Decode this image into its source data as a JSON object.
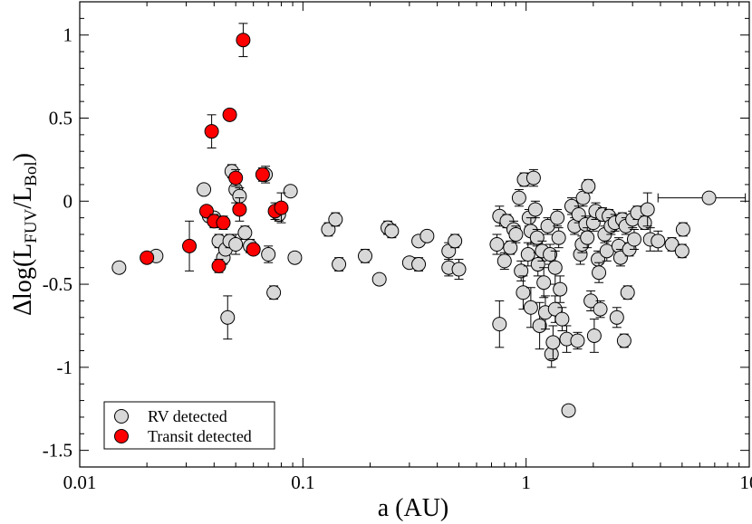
{
  "chart_data": {
    "type": "scatter",
    "xscale": "log",
    "xlim": [
      0.01,
      10
    ],
    "ylim": [
      -1.6,
      1.2
    ],
    "xlabel": "a (AU)",
    "ylabel": {
      "prefix": "Δlog(L",
      "sub1": "FUV",
      "mid": "/L",
      "sub2": "Bol",
      "suffix": ")"
    },
    "x_ticks": [
      {
        "value": 0.01,
        "label": "0.01"
      },
      {
        "value": 0.1,
        "label": "0.1"
      },
      {
        "value": 1,
        "label": "1"
      },
      {
        "value": 10,
        "label": "10"
      }
    ],
    "y_ticks": [
      {
        "value": 1,
        "label": "1"
      },
      {
        "value": 0.5,
        "label": "0.5"
      },
      {
        "value": 0,
        "label": "0"
      },
      {
        "value": -0.5,
        "label": "-0.5"
      },
      {
        "value": -1,
        "label": "-1"
      },
      {
        "value": -1.5,
        "label": "-1.5"
      }
    ],
    "legend": {
      "position": "bottom-left",
      "entries": [
        "RV detected",
        "Transit detected"
      ]
    },
    "series": [
      {
        "name": "RV detected",
        "color": "#d8d8d8",
        "points": [
          [
            0.015,
            -0.4,
            0.02
          ],
          [
            0.022,
            -0.33,
            0.03
          ],
          [
            0.036,
            0.07,
            0.02
          ],
          [
            0.038,
            -0.09,
            0.03
          ],
          [
            0.04,
            -0.1,
            0.03
          ],
          [
            0.042,
            -0.24,
            0.04
          ],
          [
            0.044,
            -0.34,
            0.04
          ],
          [
            0.045,
            -0.29,
            0.03
          ],
          [
            0.046,
            -0.7,
            0.13
          ],
          [
            0.047,
            -0.24,
            0.04
          ],
          [
            0.048,
            0.18,
            0.04
          ],
          [
            0.05,
            0.07,
            0.08
          ],
          [
            0.05,
            -0.26,
            0.06
          ],
          [
            0.052,
            0.03,
            0.05
          ],
          [
            0.055,
            -0.19,
            0.04
          ],
          [
            0.058,
            -0.27,
            0.04
          ],
          [
            0.068,
            0.16,
            0.05
          ],
          [
            0.07,
            -0.32,
            0.05
          ],
          [
            0.074,
            -0.55,
            0.04
          ],
          [
            0.078,
            -0.08,
            0.04
          ],
          [
            0.088,
            0.06,
            0.03
          ],
          [
            0.092,
            -0.34,
            0.03
          ],
          [
            0.13,
            -0.17,
            0.04
          ],
          [
            0.14,
            -0.11,
            0.04
          ],
          [
            0.145,
            -0.38,
            0.04
          ],
          [
            0.19,
            -0.33,
            0.04
          ],
          [
            0.22,
            -0.47,
            0.03
          ],
          [
            0.24,
            -0.16,
            0.04
          ],
          [
            0.25,
            -0.18,
            0.04
          ],
          [
            0.3,
            -0.37,
            0.03
          ],
          [
            0.33,
            -0.38,
            0.04
          ],
          [
            0.33,
            -0.24,
            0.03
          ],
          [
            0.36,
            -0.21,
            0.03
          ],
          [
            0.45,
            -0.4,
            0.05
          ],
          [
            0.45,
            -0.3,
            0.05
          ],
          [
            0.48,
            -0.24,
            0.04
          ],
          [
            0.5,
            -0.41,
            0.06
          ],
          [
            0.74,
            -0.26,
            0.06
          ],
          [
            0.76,
            -0.74,
            0.14
          ],
          [
            0.76,
            -0.09,
            0.06
          ],
          [
            0.8,
            -0.36,
            0.05
          ],
          [
            0.82,
            -0.12,
            0.04
          ],
          [
            0.85,
            -0.28,
            0.04
          ],
          [
            0.88,
            -0.17,
            0.05
          ],
          [
            0.9,
            -0.2,
            0.05
          ],
          [
            0.93,
            0.02,
            0.05
          ],
          [
            0.95,
            -0.42,
            0.06
          ],
          [
            0.97,
            -0.55,
            0.1
          ],
          [
            0.98,
            0.13,
            0.04
          ],
          [
            1.02,
            -0.32,
            0.07
          ],
          [
            1.03,
            -0.1,
            0.05
          ],
          [
            1.05,
            -0.18,
            0.08
          ],
          [
            1.05,
            -0.64,
            0.12
          ],
          [
            1.08,
            0.14,
            0.05
          ],
          [
            1.1,
            -0.05,
            0.05
          ],
          [
            1.12,
            -0.22,
            0.05
          ],
          [
            1.13,
            -0.38,
            0.07
          ],
          [
            1.15,
            -0.75,
            0.14
          ],
          [
            1.18,
            -0.3,
            0.06
          ],
          [
            1.2,
            -0.49,
            0.09
          ],
          [
            1.22,
            -0.67,
            0.1
          ],
          [
            1.25,
            -0.15,
            0.05
          ],
          [
            1.28,
            -0.32,
            0.06
          ],
          [
            1.3,
            -0.92,
            0.08
          ],
          [
            1.32,
            -0.85,
            0.1
          ],
          [
            1.35,
            -0.4,
            0.1
          ],
          [
            1.35,
            -0.65,
            0.08
          ],
          [
            1.38,
            -0.1,
            0.05
          ],
          [
            1.4,
            -0.22,
            0.06
          ],
          [
            1.42,
            -0.53,
            0.08
          ],
          [
            1.45,
            -0.71,
            0.07
          ],
          [
            1.52,
            -0.83,
            0.08
          ],
          [
            1.55,
            -1.26,
            0.03
          ],
          [
            1.6,
            -0.03,
            0.05
          ],
          [
            1.65,
            -0.15,
            0.05
          ],
          [
            1.7,
            -0.84,
            0.05
          ],
          [
            1.72,
            -0.08,
            0.05
          ],
          [
            1.75,
            -0.32,
            0.06
          ],
          [
            1.78,
            -0.26,
            0.05
          ],
          [
            1.8,
            0.02,
            0.05
          ],
          [
            1.85,
            -0.14,
            0.05
          ],
          [
            1.88,
            -0.22,
            0.06
          ],
          [
            1.9,
            0.09,
            0.04
          ],
          [
            1.95,
            -0.6,
            0.06
          ],
          [
            2.0,
            -0.13,
            0.05
          ],
          [
            2.02,
            -0.81,
            0.1
          ],
          [
            2.05,
            -0.06,
            0.05
          ],
          [
            2.1,
            -0.35,
            0.05
          ],
          [
            2.12,
            -0.43,
            0.06
          ],
          [
            2.15,
            -0.65,
            0.05
          ],
          [
            2.2,
            -0.08,
            0.04
          ],
          [
            2.25,
            -0.2,
            0.05
          ],
          [
            2.3,
            -0.3,
            0.06
          ],
          [
            2.35,
            -0.09,
            0.04
          ],
          [
            2.4,
            -0.15,
            0.05
          ],
          [
            2.5,
            -0.13,
            0.05
          ],
          [
            2.55,
            -0.7,
            0.06
          ],
          [
            2.6,
            -0.27,
            0.05
          ],
          [
            2.65,
            -0.34,
            0.05
          ],
          [
            2.7,
            -0.11,
            0.04
          ],
          [
            2.75,
            -0.84,
            0.04
          ],
          [
            2.8,
            -0.15,
            0.05
          ],
          [
            2.85,
            -0.55,
            0.04
          ],
          [
            2.9,
            -0.29,
            0.04
          ],
          [
            3.0,
            -0.11,
            0.05
          ],
          [
            3.05,
            -0.23,
            0.06
          ],
          [
            3.15,
            -0.07,
            0.04
          ],
          [
            3.4,
            -0.13,
            0.04
          ],
          [
            3.5,
            -0.05,
            0.1
          ],
          [
            3.6,
            -0.23,
            0.07
          ],
          [
            3.9,
            -0.24,
            0.06
          ],
          [
            4.5,
            -0.26,
            0.04
          ],
          [
            5.0,
            -0.3,
            0.04
          ],
          [
            5.05,
            -0.17,
            0.04
          ]
        ]
      },
      {
        "name": "Transit detected",
        "color": "#ff0000",
        "points": [
          [
            0.02,
            -0.34,
            0.03
          ],
          [
            0.031,
            -0.27,
            0.15
          ],
          [
            0.037,
            -0.06,
            0.03
          ],
          [
            0.039,
            0.42,
            0.1
          ],
          [
            0.04,
            -0.12,
            0.04
          ],
          [
            0.042,
            -0.39,
            0.04
          ],
          [
            0.044,
            -0.13,
            0.04
          ],
          [
            0.047,
            0.52,
            0.02
          ],
          [
            0.05,
            0.14,
            0.05
          ],
          [
            0.052,
            -0.05,
            0.07
          ],
          [
            0.054,
            0.97,
            0.1
          ],
          [
            0.06,
            -0.29,
            0.03
          ],
          [
            0.066,
            0.16,
            0.04
          ],
          [
            0.075,
            -0.06,
            0.05
          ],
          [
            0.08,
            -0.04,
            0.09
          ]
        ]
      }
    ],
    "extra_points": [
      {
        "x": 6.6,
        "y": 0.02,
        "x_err_low": 2.7,
        "x_err_high": 3.0,
        "series": "RV detected"
      }
    ]
  }
}
